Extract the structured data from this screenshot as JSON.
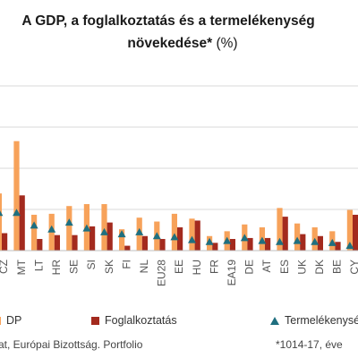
{
  "header": {
    "title_line1": "A GDP, a foglalkoztatás és a termelékenység",
    "title_line2": "növekedése*",
    "title_unit": "(%)"
  },
  "footer": {
    "source": "at, Európai Bizottság. Portfolio",
    "note": "*1014-17, éve"
  },
  "colors": {
    "gdp": "#f7a25a",
    "employment": "#a32a1e",
    "productivity": "#1f6f7f",
    "grid": "#d9d9d9",
    "axis": "#bfbfbf",
    "tick": "#555555"
  },
  "chart_data": {
    "type": "bar",
    "categories": [
      "CZ",
      "MT",
      "LT",
      "HR",
      "SE",
      "SI",
      "SK",
      "FI",
      "NL",
      "EU28",
      "EE",
      "HU",
      "FR",
      "EA19",
      "DE",
      "AT",
      "ES",
      "UK",
      "DK",
      "BE",
      "CY"
    ],
    "ylim": [
      0,
      17
    ],
    "grid": true,
    "legend_position": "bottom",
    "series": [
      {
        "name": "DP",
        "kind": "bar",
        "values": [
          5.9,
          11.3,
          3.7,
          3.8,
          4.6,
          4.8,
          4.8,
          2.2,
          3.4,
          3.0,
          3.8,
          3.3,
          1.5,
          2.0,
          2.7,
          2.4,
          4.4,
          2.8,
          2.4,
          2.0,
          4.2
        ]
      },
      {
        "name": "Foglalkoztatás",
        "kind": "bar",
        "values": [
          1.8,
          5.7,
          1.2,
          1.6,
          1.6,
          2.5,
          2.9,
          0.5,
          1.5,
          1.2,
          2.4,
          3.1,
          0.8,
          1.2,
          1.3,
          1.3,
          3.5,
          1.7,
          1.5,
          0.9,
          3.7
        ]
      },
      {
        "name": "Termelékenység",
        "kind": "marker",
        "values": [
          3.9,
          3.9,
          2.6,
          2.2,
          2.9,
          2.3,
          1.9,
          1.7,
          1.9,
          1.5,
          1.4,
          1.1,
          0.9,
          1.0,
          1.3,
          1.0,
          0.9,
          1.0,
          0.9,
          0.8,
          0.5
        ]
      }
    ]
  }
}
